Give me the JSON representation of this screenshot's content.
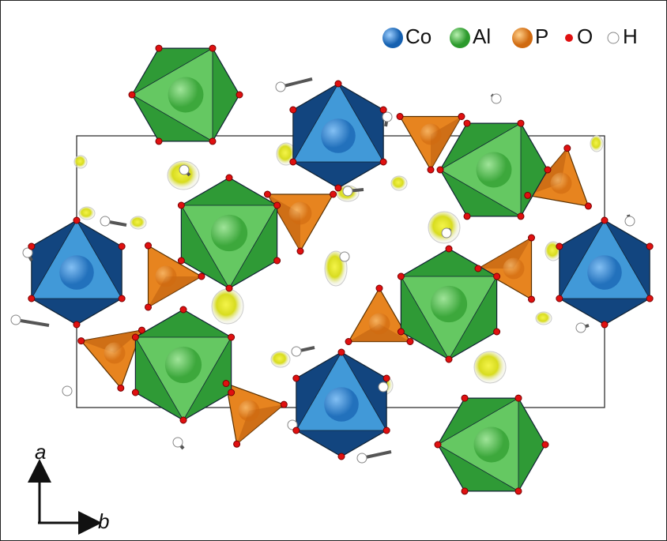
{
  "legend": [
    {
      "label": "Co"
    },
    {
      "label": "Al"
    },
    {
      "label": "P"
    },
    {
      "label": "O"
    },
    {
      "label": "H"
    }
  ],
  "axes": {
    "vertical": "a",
    "horizontal": "b"
  }
}
